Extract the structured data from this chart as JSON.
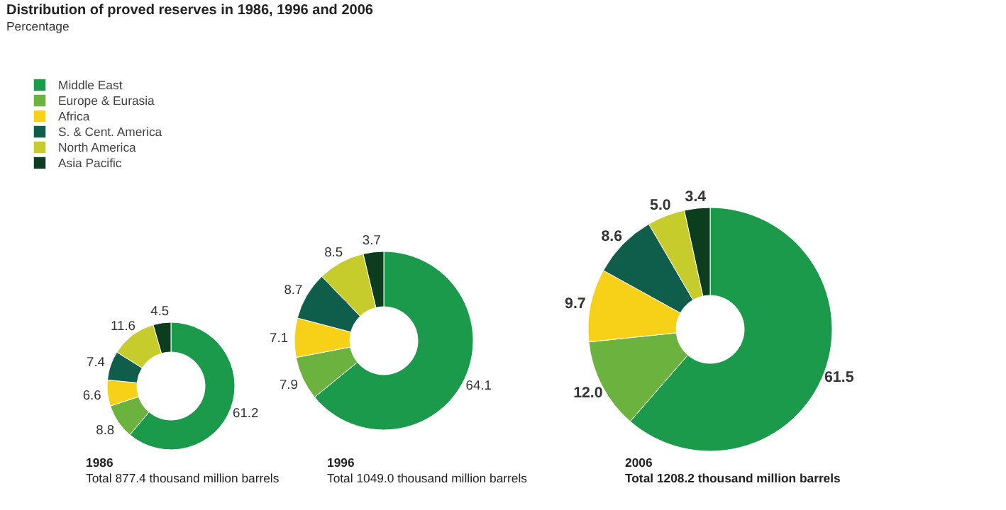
{
  "chart_data": [
    {
      "type": "donut",
      "title": "Distribution of proved reserves in 1986, 1996 and 2006",
      "subtitle": "Percentage",
      "legend": "top left",
      "categories": [
        "Middle East",
        "Europe & Eurasia",
        "Africa",
        "S. & Cent. America",
        "North America",
        "Asia Pacific"
      ],
      "values": [
        61.2,
        8.8,
        6.6,
        7.4,
        11.6,
        4.5
      ],
      "value_labels": [
        "61.2",
        "8.8",
        "6.6",
        "7.4",
        "11.6",
        "4.5"
      ],
      "colors": [
        "#1b9a4b",
        "#6bb23f",
        "#f6d117",
        "#0f5e4b",
        "#c6cc2b",
        "#0c3d1f"
      ],
      "annotations": [
        "1986",
        "Total 877.4 thousand million barrels"
      ]
    },
    {
      "type": "donut",
      "categories": [
        null,
        null,
        null,
        null,
        null,
        null
      ],
      "values": [
        64.1,
        7.9,
        7.1,
        8.7,
        8.5,
        3.7
      ],
      "value_labels": [
        "64.1",
        "7.9",
        "7.1",
        "8.7",
        "8.5",
        "3.7"
      ],
      "colors": [
        "#1b9a4b",
        "#6bb23f",
        "#f6d117",
        "#0f5e4b",
        "#c6cc2b",
        "#0c3d1f"
      ],
      "annotations": [
        "1996",
        "Total 1049.0 thousand million barrels"
      ]
    },
    {
      "type": "donut",
      "categories": [
        null,
        null,
        null,
        null,
        null,
        null
      ],
      "values": [
        61.5,
        12.0,
        9.7,
        8.6,
        5.0,
        3.4
      ],
      "value_labels": [
        "61.5",
        "12.0",
        "9.7",
        "8.6",
        "5.0",
        "3.4"
      ],
      "colors": [
        "#1b9a4b",
        "#6bb23f",
        "#f6d117",
        "#0f5e4b",
        "#c6cc2b",
        "#0c3d1f"
      ],
      "annotations": [
        "2006",
        "Total 1208.2 thousand million barrels"
      ]
    }
  ]
}
